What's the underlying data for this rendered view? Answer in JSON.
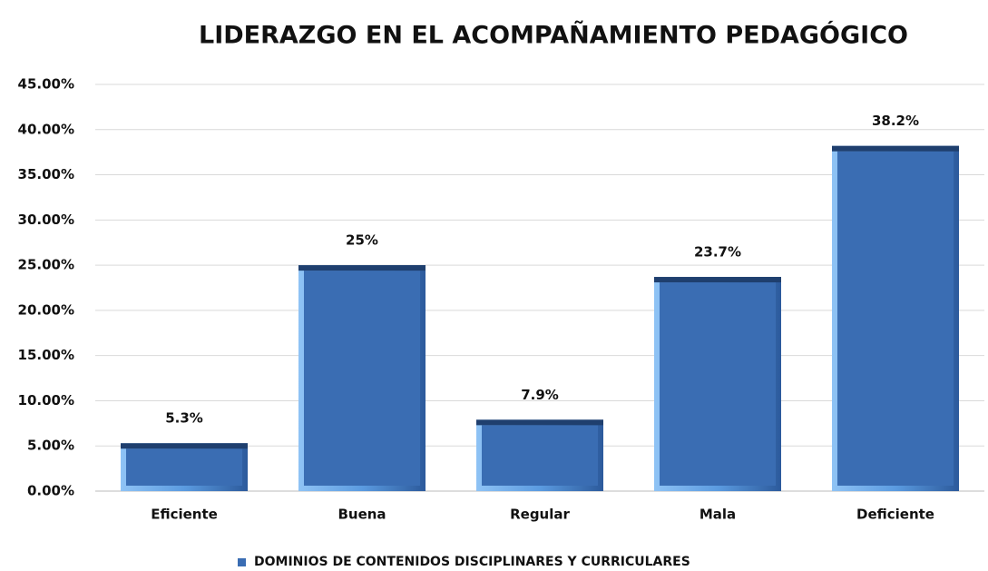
{
  "chart_data": {
    "type": "bar",
    "title": "LIDERAZGO EN EL ACOMPAÑAMIENTO PEDAGÓGICO",
    "categories": [
      "Eficiente",
      "Buena",
      "Regular",
      "Mala",
      "Deficiente"
    ],
    "series": [
      {
        "name": "DOMINIOS DE CONTENIDOS DISCIPLINARES Y CURRICULARES",
        "color": "#3a6db3",
        "values": [
          5.3,
          25,
          7.9,
          23.7,
          38.2
        ],
        "value_labels": [
          "5.3%",
          "25%",
          "7.9%",
          "23.7%",
          "38.2%"
        ]
      }
    ],
    "ylim": [
      0,
      45
    ],
    "yticks": [
      {
        "value": 0,
        "label": "0.00%"
      },
      {
        "value": 5,
        "label": "5.00%"
      },
      {
        "value": 10,
        "label": "10.00%"
      },
      {
        "value": 15,
        "label": "15.00%"
      },
      {
        "value": 20,
        "label": "20.00%"
      },
      {
        "value": 25,
        "label": "25.00%"
      },
      {
        "value": 30,
        "label": "30.00%"
      },
      {
        "value": 35,
        "label": "35.00%"
      },
      {
        "value": 40,
        "label": "40.00%"
      },
      {
        "value": 45,
        "label": "45.00%"
      }
    ],
    "grid": true,
    "legend": "bottom"
  }
}
